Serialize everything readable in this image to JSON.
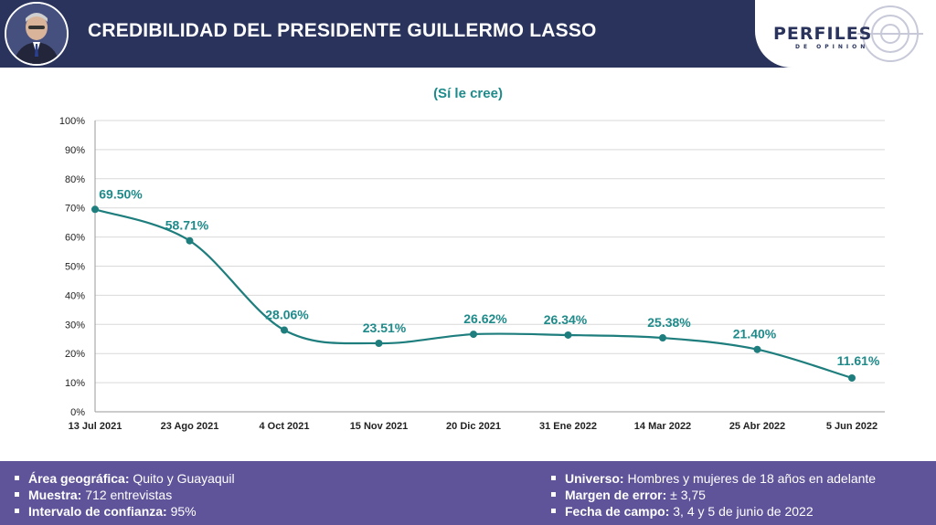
{
  "header": {
    "title": "CREDIBILIDAD DEL PRESIDENTE GUILLERMO LASSO",
    "logo_main": "PERFILES",
    "logo_sub": "DE OPINION"
  },
  "colors": {
    "header_bg": "#29335c",
    "footer_bg": "#5f5499",
    "line": "#1e7d7d",
    "label": "#1e8a8a"
  },
  "chart_data": {
    "type": "line",
    "subtitle": "(Sí le cree)",
    "x": [
      "13 Jul 2021",
      "23 Ago 2021",
      "4 Oct 2021",
      "15 Nov 2021",
      "20 Dic 2021",
      "31 Ene 2022",
      "14 Mar 2022",
      "25 Abr 2022",
      "5 Jun 2022"
    ],
    "values": [
      69.5,
      58.71,
      28.06,
      23.51,
      26.62,
      26.34,
      25.38,
      21.4,
      11.61
    ],
    "value_labels": [
      "69.50%",
      "58.71%",
      "28.06%",
      "23.51%",
      "26.62%",
      "26.34%",
      "25.38%",
      "21.40%",
      "11.61%"
    ],
    "yticks": [
      "0%",
      "10%",
      "20%",
      "30%",
      "40%",
      "50%",
      "60%",
      "70%",
      "80%",
      "90%",
      "100%"
    ],
    "ylim": [
      0,
      100
    ],
    "grid": true,
    "smooth": true
  },
  "footer": {
    "left": [
      {
        "label": "Área geográfica:",
        "value": " Quito y Guayaquil"
      },
      {
        "label": "Muestra:",
        "value": " 712 entrevistas"
      },
      {
        "label": "Intervalo de confianza:",
        "value": " 95%"
      }
    ],
    "right": [
      {
        "label": "Universo:",
        "value": " Hombres y mujeres de 18 años en adelante"
      },
      {
        "label": "Margen de error:",
        "value": " ± 3,75"
      },
      {
        "label": "Fecha de campo:",
        "value": " 3, 4 y 5 de junio de 2022"
      }
    ]
  }
}
